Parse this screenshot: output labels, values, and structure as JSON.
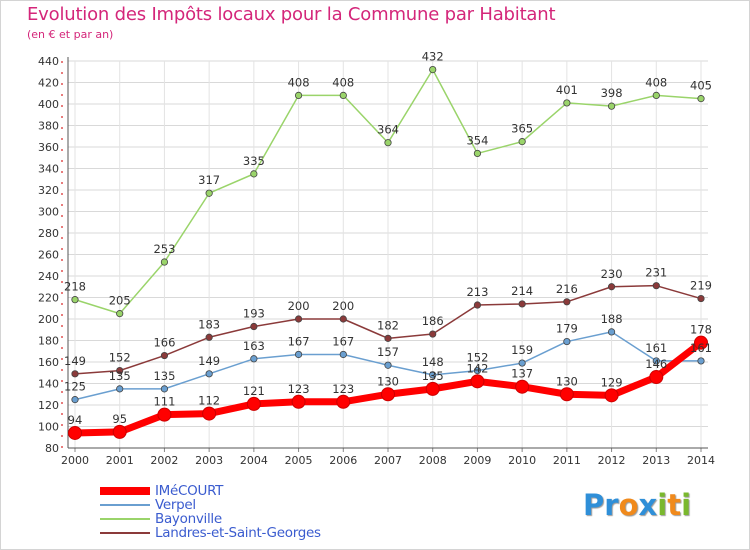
{
  "title": "Evolution des Impôts locaux pour la Commune par Habitant",
  "subtitle": "(en € et par an)",
  "brand": {
    "letters": [
      "P",
      "r",
      "o",
      "x",
      "i",
      "t",
      "i"
    ],
    "colors": [
      "#2f8fd8",
      "#2f8fd8",
      "#f08a1c",
      "#2f8fd8",
      "#7ab82e",
      "#f08a1c",
      "#7ab82e"
    ]
  },
  "chart_data": {
    "type": "line",
    "x": [
      "2000",
      "2001",
      "2002",
      "2003",
      "2004",
      "2005",
      "2006",
      "2007",
      "2008",
      "2009",
      "2010",
      "2011",
      "2012",
      "2013",
      "2014"
    ],
    "ylim": [
      80,
      440
    ],
    "yticks": [
      80,
      100,
      120,
      140,
      160,
      180,
      200,
      220,
      240,
      260,
      280,
      300,
      320,
      340,
      360,
      380,
      400,
      420,
      440
    ],
    "grid": true,
    "legend_position": "bottom-left",
    "series": [
      {
        "name": "IMéCOURT",
        "color": "#ff0000",
        "values": [
          94,
          95,
          111,
          112,
          121,
          123,
          123,
          130,
          135,
          142,
          137,
          130,
          129,
          146,
          178
        ],
        "labels": [
          "94",
          "95",
          "111",
          "112",
          "121",
          "123",
          "123",
          "130",
          "135",
          "142",
          "137",
          "130",
          "129",
          "146",
          "178"
        ]
      },
      {
        "name": "Verpel",
        "color": "#6a9fd0",
        "values": [
          125,
          135,
          135,
          149,
          163,
          167,
          167,
          157,
          148,
          152,
          159,
          179,
          188,
          161,
          161
        ],
        "labels": [
          "125",
          "135",
          "135",
          "149",
          "163",
          "167",
          "167",
          "157",
          "148",
          "152",
          "159",
          "179",
          "188",
          "161",
          "161"
        ]
      },
      {
        "name": "Bayonville",
        "color": "#9ad46a",
        "values": [
          218,
          205,
          253,
          317,
          335,
          408,
          408,
          364,
          432,
          354,
          365,
          401,
          398,
          408,
          405
        ],
        "labels": [
          "218",
          "205",
          "253",
          "317",
          "335",
          "408",
          "408",
          "364",
          "432",
          "354",
          "365",
          "401",
          "398",
          "408",
          "405"
        ]
      },
      {
        "name": "Landres-et-Saint-Georges",
        "color": "#8b3a3a",
        "values": [
          149,
          152,
          166,
          183,
          193,
          200,
          200,
          182,
          186,
          213,
          214,
          216,
          230,
          231,
          219
        ],
        "labels": [
          "149",
          "152",
          "166",
          "183",
          "193",
          "200",
          "200",
          "182",
          "186",
          "213",
          "214",
          "216",
          "230",
          "231",
          "219"
        ]
      }
    ]
  }
}
